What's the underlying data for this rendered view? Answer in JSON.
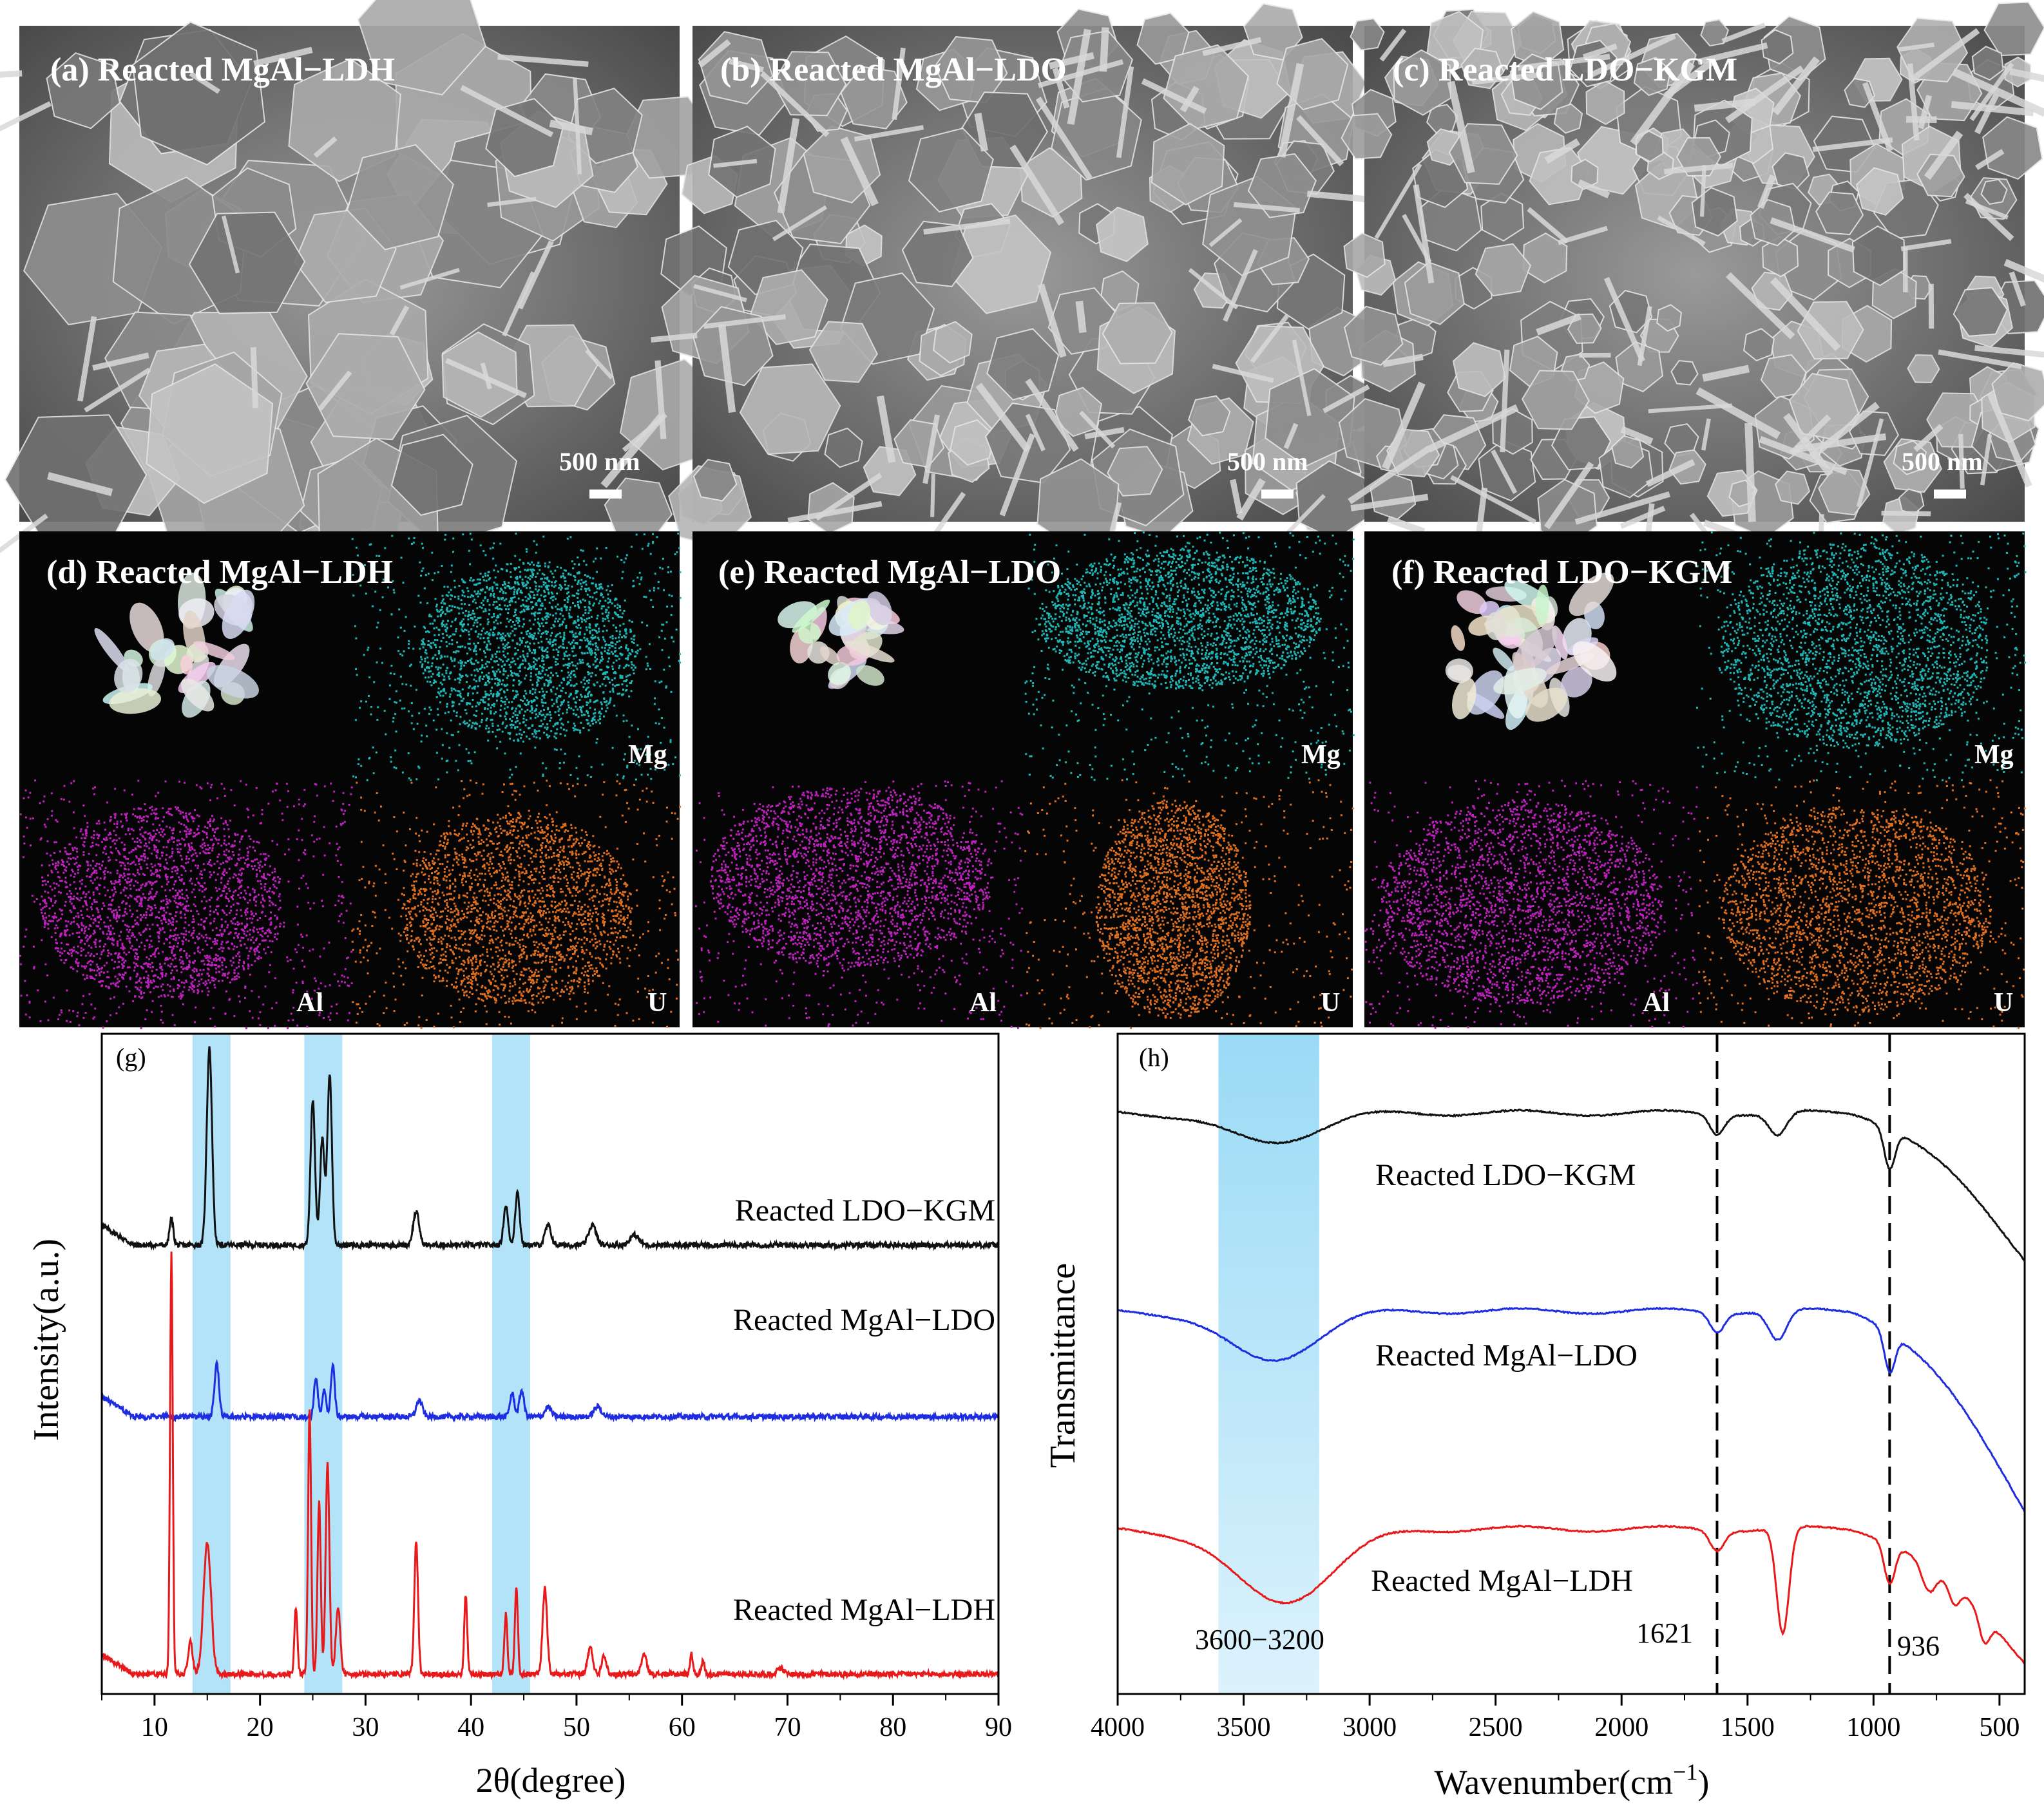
{
  "sem_panels": [
    {
      "id": "a",
      "label": "(a) Reacted MgAl−LDH",
      "scale": "500 nm"
    },
    {
      "id": "b",
      "label": "(b) Reacted MgAl−LDO",
      "scale": "500 nm"
    },
    {
      "id": "c",
      "label": "(c) Reacted LDO−KGM",
      "scale": "500 nm"
    }
  ],
  "eds_panels": [
    {
      "id": "d",
      "label": "(d) Reacted MgAl−LDH",
      "elements": [
        "Mg",
        "Al",
        "U"
      ]
    },
    {
      "id": "e",
      "label": "(e) Reacted MgAl−LDO",
      "elements": [
        "Mg",
        "Al",
        "U"
      ]
    },
    {
      "id": "f",
      "label": "(f) Reacted LDO−KGM",
      "elements": [
        "Mg",
        "Al",
        "U"
      ]
    }
  ],
  "colors": {
    "mg": "#1fb6b6",
    "al": "#c020c0",
    "u": "#e0701f",
    "ldh": "#e8191a",
    "ldo": "#1f2de0",
    "kgm": "#111111",
    "highlight": "#9fdcf6"
  },
  "chart_data": [
    {
      "type": "line",
      "panel": "(g)",
      "xlabel": "2θ(degree)",
      "ylabel": "Intensity(a.u.)",
      "xlim": [
        5,
        90
      ],
      "xticks": [
        "10",
        "20",
        "30",
        "40",
        "50",
        "60",
        "70",
        "80",
        "90"
      ],
      "highlight_bands": [
        [
          13.6,
          17.2
        ],
        [
          24.2,
          27.8
        ],
        [
          42.0,
          45.6
        ]
      ],
      "series": [
        {
          "name": "Reacted LDO−KGM",
          "color": "#111111",
          "offset": 0.68,
          "baseline": 0.0,
          "peaks": [
            [
              11.6,
              0.04,
              0.25
            ],
            [
              15.2,
              0.3,
              0.35
            ],
            [
              25.0,
              0.22,
              0.3
            ],
            [
              25.9,
              0.16,
              0.3
            ],
            [
              26.6,
              0.26,
              0.3
            ],
            [
              34.8,
              0.05,
              0.4
            ],
            [
              43.3,
              0.06,
              0.3
            ],
            [
              44.4,
              0.08,
              0.3
            ],
            [
              47.3,
              0.03,
              0.4
            ],
            [
              51.5,
              0.03,
              0.5
            ],
            [
              55.5,
              0.015,
              0.6
            ]
          ]
        },
        {
          "name": "Reacted MgAl−LDO",
          "color": "#1f2de0",
          "offset": 0.42,
          "baseline": 0.0,
          "peaks": [
            [
              15.9,
              0.08,
              0.3
            ],
            [
              25.3,
              0.06,
              0.25
            ],
            [
              26.1,
              0.04,
              0.25
            ],
            [
              26.9,
              0.08,
              0.25
            ],
            [
              35.1,
              0.025,
              0.4
            ],
            [
              43.9,
              0.035,
              0.3
            ],
            [
              44.8,
              0.04,
              0.3
            ],
            [
              47.3,
              0.015,
              0.4
            ],
            [
              52.0,
              0.015,
              0.5
            ]
          ]
        },
        {
          "name": "Reacted MgAl−LDH",
          "color": "#e8191a",
          "offset": 0.03,
          "baseline": 0.0,
          "peaks": [
            [
              11.6,
              0.64,
              0.18
            ],
            [
              13.4,
              0.05,
              0.3
            ],
            [
              15.0,
              0.2,
              0.5
            ],
            [
              23.4,
              0.1,
              0.2
            ],
            [
              24.7,
              0.4,
              0.2
            ],
            [
              25.6,
              0.26,
              0.22
            ],
            [
              26.4,
              0.32,
              0.25
            ],
            [
              27.4,
              0.1,
              0.3
            ],
            [
              34.8,
              0.2,
              0.25
            ],
            [
              39.5,
              0.12,
              0.2
            ],
            [
              43.3,
              0.09,
              0.2
            ],
            [
              44.3,
              0.13,
              0.2
            ],
            [
              47.0,
              0.13,
              0.3
            ],
            [
              51.3,
              0.04,
              0.35
            ],
            [
              52.6,
              0.03,
              0.3
            ],
            [
              56.4,
              0.03,
              0.35
            ],
            [
              60.9,
              0.03,
              0.2
            ],
            [
              62.0,
              0.02,
              0.2
            ],
            [
              69.3,
              0.01,
              0.4
            ]
          ]
        }
      ]
    },
    {
      "type": "line",
      "panel": "(h)",
      "xlabel": "Wavenumber(cm",
      "xlabel_sup": "−1",
      "xlabel_end": ")",
      "ylabel": "Transmittance",
      "xlim": [
        4000,
        400
      ],
      "xticks": [
        "4000",
        "3500",
        "3000",
        "2500",
        "2000",
        "1500",
        "1000",
        "500"
      ],
      "highlight_bands": [
        [
          3600,
          3200
        ]
      ],
      "annotations": [
        "3600−3200",
        "1621",
        "936"
      ],
      "dashed_lines": [
        1621,
        936
      ],
      "series": [
        {
          "name": "Reacted LDO−KGM",
          "color": "#111111",
          "offset": 0.88,
          "features": [
            [
              3400,
              -0.045,
              250
            ],
            [
              1621,
              -0.03,
              40
            ],
            [
              1380,
              -0.035,
              50
            ],
            [
              936,
              -0.06,
              30
            ]
          ],
          "tail_drop": 0.22
        },
        {
          "name": "Reacted MgAl−LDO",
          "color": "#1f2de0",
          "offset": 0.58,
          "features": [
            [
              3400,
              -0.075,
              250
            ],
            [
              1621,
              -0.03,
              40
            ],
            [
              1380,
              -0.045,
              50
            ],
            [
              936,
              -0.06,
              30
            ]
          ],
          "tail_drop": 0.3
        },
        {
          "name": "Reacted MgAl−LDH",
          "color": "#e8191a",
          "offset": 0.25,
          "features": [
            [
              3350,
              -0.11,
              280
            ],
            [
              1621,
              -0.03,
              40
            ],
            [
              1360,
              -0.16,
              35
            ],
            [
              936,
              -0.06,
              30
            ],
            [
              780,
              -0.04,
              40
            ],
            [
              680,
              -0.03,
              30
            ],
            [
              560,
              -0.04,
              30
            ]
          ],
          "tail_drop": 0.2
        }
      ]
    }
  ]
}
